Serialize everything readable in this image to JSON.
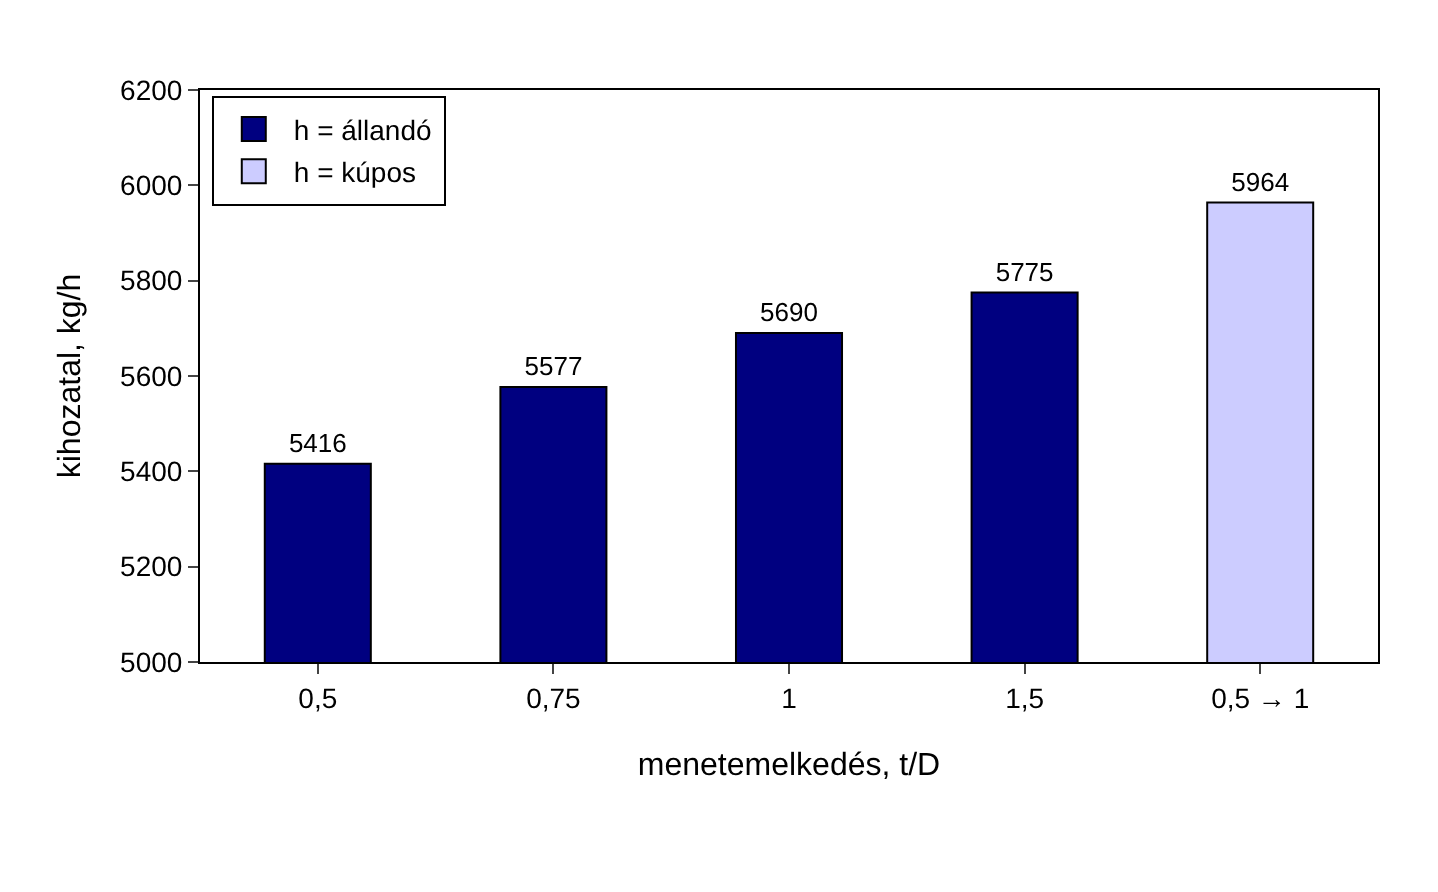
{
  "chart_data": {
    "type": "bar",
    "xlabel": "menetemelkedés, t/D",
    "ylabel": "kihozatal, kg/h",
    "categories": [
      "0,5",
      "0,75",
      "1",
      "1,5",
      "0,5 → 1"
    ],
    "series": [
      {
        "name": "h = állandó",
        "color": "#000080",
        "values": [
          5416,
          5577,
          5690,
          5775,
          null
        ]
      },
      {
        "name": "h = kúpos",
        "color": "#ccccff",
        "values": [
          null,
          null,
          null,
          null,
          5964
        ]
      }
    ],
    "ylim": [
      5000,
      6200
    ],
    "yticks": [
      5000,
      5200,
      5400,
      5600,
      5800,
      6000,
      6200
    ],
    "data_labels": true,
    "legend": "top left",
    "grid": false
  }
}
